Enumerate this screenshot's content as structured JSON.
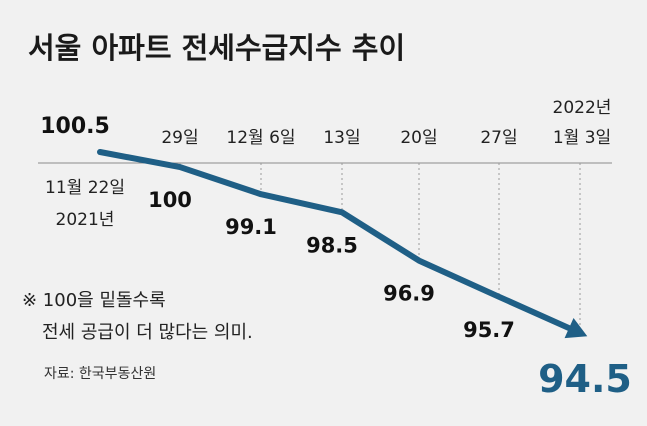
{
  "chart_data": {
    "type": "line",
    "title": "서울 아파트 전세수급지수 추이",
    "x": [
      "11월 22일 2021년",
      "29일",
      "12월 6일",
      "13일",
      "20일",
      "27일",
      "2022년 1월 3일"
    ],
    "x_tick_labels": [
      [
        "11월 22일",
        "2021년"
      ],
      [
        "29일"
      ],
      [
        "12월 6일"
      ],
      [
        "13일"
      ],
      [
        "20일"
      ],
      [
        "27일"
      ],
      [
        "2022년",
        "1월 3일"
      ]
    ],
    "series": [
      {
        "values": [
          100.5,
          100,
          99.1,
          98.5,
          96.9,
          95.7,
          94.5
        ]
      }
    ],
    "data_labels": [
      "100.5",
      "100",
      "99.1",
      "98.5",
      "96.9",
      "95.7",
      "94.5"
    ],
    "ylim": [
      94.5,
      100.5
    ],
    "grid": "dotted vertical guide lines",
    "line_color": "#1f5f86",
    "note": [
      "※ 100을 밑돌수록",
      "전세 공급이 더 많다는 의미."
    ],
    "source": "자료: 한국부동산원"
  }
}
